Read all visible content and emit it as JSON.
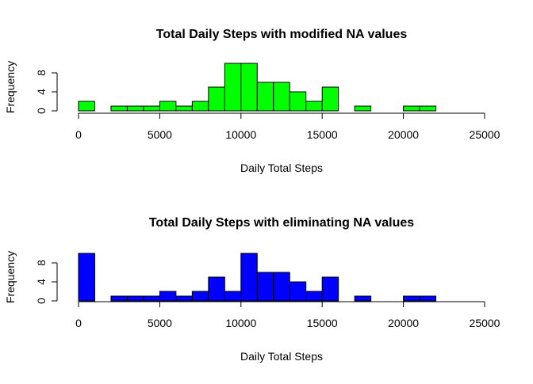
{
  "chart_data": [
    {
      "type": "bar",
      "title": "Total Daily Steps with modified NA values",
      "xlabel": "Daily Total Steps",
      "ylabel": "Frequency",
      "bar_color": "#00ff00",
      "border_color": "#000000",
      "bin_width": 1000,
      "bin_start": 0,
      "values": [
        2,
        0,
        1,
        1,
        1,
        2,
        1,
        2,
        5,
        10,
        10,
        6,
        6,
        4,
        2,
        5,
        0,
        1,
        0,
        0,
        1,
        1
      ],
      "xlim": [
        0,
        25000
      ],
      "x_ticks": [
        "0",
        "5000",
        "10000",
        "15000",
        "20000",
        "25000"
      ],
      "ylim": [
        0,
        10
      ],
      "y_ticks": [
        "0",
        "4",
        "8"
      ]
    },
    {
      "type": "bar",
      "title": "Total Daily Steps with eliminating NA values",
      "xlabel": "Daily Total Steps",
      "ylabel": "Frequency",
      "bar_color": "#0000ff",
      "border_color": "#000000",
      "bin_width": 1000,
      "bin_start": 0,
      "values": [
        10,
        0,
        1,
        1,
        1,
        2,
        1,
        2,
        5,
        2,
        10,
        6,
        6,
        4,
        2,
        5,
        0,
        1,
        0,
        0,
        1,
        1
      ],
      "xlim": [
        0,
        25000
      ],
      "x_ticks": [
        "0",
        "5000",
        "10000",
        "15000",
        "20000",
        "25000"
      ],
      "ylim": [
        0,
        10
      ],
      "y_ticks": [
        "0",
        "4",
        "8"
      ]
    }
  ]
}
